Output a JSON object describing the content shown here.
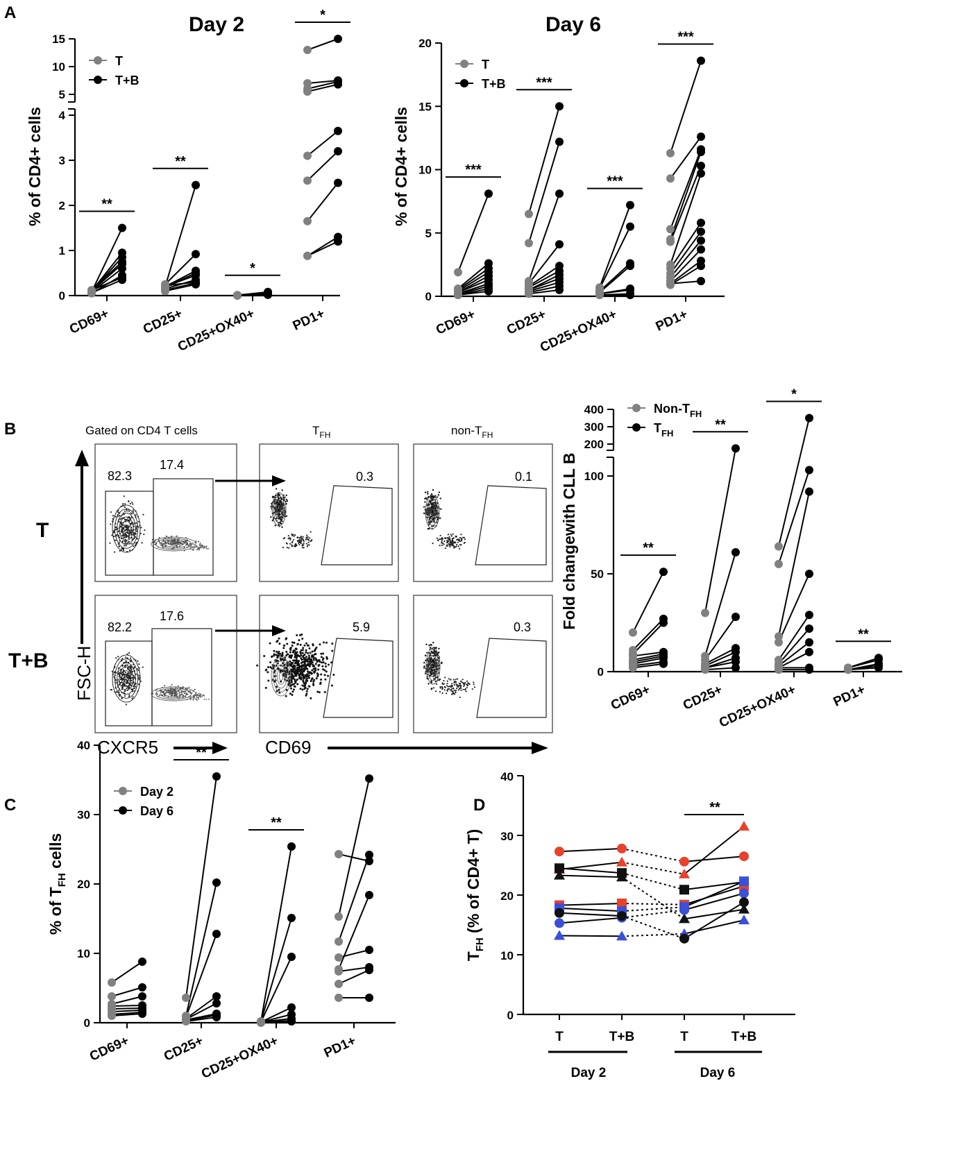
{
  "panel_labels": [
    "A",
    "B",
    "C",
    "D"
  ],
  "chart_data": [
    {
      "panel": "A",
      "type": "scatter",
      "title": "Day 2",
      "ylabel": "% of CD4+ cells",
      "categories": [
        "CD69+",
        "CD25+",
        "CD25+OX40+",
        "PD1+"
      ],
      "axis_break": {
        "lower": [
          0,
          4
        ],
        "upper": [
          4,
          15
        ]
      },
      "yticks_lower": [
        0,
        1,
        2,
        3,
        4
      ],
      "yticks_upper": [
        5,
        10,
        15
      ],
      "legend": [
        "T",
        "T+B"
      ],
      "significance": [
        "**",
        "**",
        "*",
        "*"
      ],
      "pairs": [
        [
          [
            0.08,
            1.5
          ],
          [
            0.1,
            0.95
          ],
          [
            0.1,
            0.85
          ],
          [
            0.12,
            0.75
          ],
          [
            0.1,
            0.7
          ],
          [
            0.08,
            0.6
          ],
          [
            0.05,
            0.45
          ],
          [
            0.12,
            0.4
          ],
          [
            0.06,
            0.35
          ]
        ],
        [
          [
            0.2,
            2.45
          ],
          [
            0.25,
            0.92
          ],
          [
            0.2,
            0.55
          ],
          [
            0.18,
            0.5
          ],
          [
            0.2,
            0.45
          ],
          [
            0.15,
            0.35
          ],
          [
            0.1,
            0.25
          ],
          [
            0.22,
            0.3
          ],
          [
            0.12,
            0.28
          ]
        ],
        [
          [
            0.01,
            0.08
          ],
          [
            0.01,
            0.05
          ],
          [
            0.01,
            0.04
          ],
          [
            0.0,
            0.03
          ],
          [
            0.01,
            0.02
          ],
          [
            0.0,
            0.02
          ]
        ],
        [
          [
            13,
            15
          ],
          [
            7,
            7.5
          ],
          [
            6,
            7.3
          ],
          [
            5.5,
            6.8
          ],
          [
            3.1,
            3.65
          ],
          [
            2.55,
            3.2
          ],
          [
            1.65,
            2.5
          ],
          [
            0.88,
            1.3
          ],
          [
            0.88,
            1.2
          ]
        ]
      ]
    },
    {
      "panel": "A",
      "type": "scatter",
      "title": "Day 6",
      "ylabel": "% of CD4+ cells",
      "categories": [
        "CD69+",
        "CD25+",
        "CD25+OX40+",
        "PD1+"
      ],
      "ylim": [
        0,
        20
      ],
      "yticks": [
        0,
        5,
        10,
        15,
        20
      ],
      "legend": [
        "T",
        "T+B"
      ],
      "significance": [
        "***",
        "***",
        "***",
        "***"
      ],
      "pairs": [
        [
          [
            1.9,
            8.1
          ],
          [
            0.6,
            2.6
          ],
          [
            0.5,
            2.2
          ],
          [
            0.4,
            1.9
          ],
          [
            0.3,
            1.6
          ],
          [
            0.3,
            1.3
          ],
          [
            0.2,
            1.0
          ],
          [
            0.15,
            0.8
          ],
          [
            0.1,
            0.6
          ],
          [
            0.1,
            0.4
          ]
        ],
        [
          [
            6.5,
            15.0
          ],
          [
            4.2,
            12.2
          ],
          [
            1.2,
            8.1
          ],
          [
            1.0,
            4.1
          ],
          [
            0.8,
            2.4
          ],
          [
            0.7,
            2.0
          ],
          [
            0.5,
            1.7
          ],
          [
            0.5,
            1.4
          ],
          [
            0.4,
            1.1
          ],
          [
            0.3,
            0.8
          ],
          [
            0.2,
            0.5
          ]
        ],
        [
          [
            0.7,
            7.2
          ],
          [
            0.6,
            5.5
          ],
          [
            0.4,
            2.6
          ],
          [
            0.3,
            2.4
          ],
          [
            0.2,
            0.6
          ],
          [
            0.2,
            0.5
          ],
          [
            0.1,
            0.2
          ],
          [
            0.1,
            0.1
          ]
        ],
        [
          [
            11.3,
            18.6
          ],
          [
            9.3,
            12.6
          ],
          [
            5.3,
            11.6
          ],
          [
            4.5,
            11.4
          ],
          [
            4.3,
            10.3
          ],
          [
            2.5,
            9.7
          ],
          [
            2.2,
            5.8
          ],
          [
            1.8,
            5.1
          ],
          [
            1.5,
            4.4
          ],
          [
            1.2,
            3.7
          ],
          [
            1.0,
            2.8
          ],
          [
            0.9,
            2.4
          ],
          [
            1.0,
            1.2
          ]
        ]
      ]
    },
    {
      "panel": "B",
      "type": "scatter",
      "ylabel": "Fold changewith CLL B",
      "categories": [
        "CD69+",
        "CD25+",
        "CD25+OX40+",
        "PD1+"
      ],
      "axis_break": {
        "lower": [
          0,
          105
        ],
        "upper": [
          150,
          400
        ]
      },
      "yticks_lower": [
        0,
        50,
        100
      ],
      "yticks_upper": [
        200,
        300,
        400
      ],
      "legend": [
        {
          "main": "Non-T",
          "sub": "FH"
        },
        {
          "main": "T",
          "sub": "FH"
        }
      ],
      "significance": [
        "**",
        "**",
        "*",
        "**"
      ],
      "pairs": [
        [
          [
            20,
            51
          ],
          [
            11,
            27
          ],
          [
            9,
            25
          ],
          [
            8,
            10
          ],
          [
            6,
            9
          ],
          [
            5,
            8
          ],
          [
            4,
            7
          ],
          [
            3,
            5
          ],
          [
            2,
            4
          ]
        ],
        [
          [
            30,
            175
          ],
          [
            8,
            61
          ],
          [
            6,
            28
          ],
          [
            4,
            12
          ],
          [
            3,
            10
          ],
          [
            2,
            7
          ],
          [
            2,
            5
          ],
          [
            1,
            2
          ]
        ],
        [
          [
            64,
            350
          ],
          [
            55,
            103
          ],
          [
            18,
            92
          ],
          [
            15,
            50
          ],
          [
            6,
            29
          ],
          [
            4,
            22
          ],
          [
            3,
            15
          ],
          [
            2,
            10
          ],
          [
            2,
            2
          ],
          [
            1,
            1
          ]
        ],
        [
          [
            2,
            7
          ],
          [
            2,
            6
          ],
          [
            1,
            4
          ],
          [
            1,
            3
          ],
          [
            1,
            2
          ]
        ]
      ]
    },
    {
      "panel": "C",
      "type": "scatter",
      "ylabel": "% of T",
      "ylabel_sub": "FH",
      "ylabel_suffix": " cells",
      "categories": [
        "CD69+",
        "CD25+",
        "CD25+OX40+",
        "PD1+"
      ],
      "ylim": [
        0,
        40
      ],
      "yticks": [
        0,
        10,
        20,
        30,
        40
      ],
      "legend": [
        "Day 2",
        "Day 6"
      ],
      "significance": [
        "",
        "**",
        "**",
        ""
      ],
      "pairs": [
        [
          [
            5.8,
            8.8
          ],
          [
            3.8,
            5.1
          ],
          [
            2.7,
            3.8
          ],
          [
            2.4,
            2.5
          ],
          [
            2.0,
            2.1
          ],
          [
            1.6,
            1.8
          ],
          [
            1.2,
            1.5
          ],
          [
            1.0,
            1.3
          ]
        ],
        [
          [
            3.6,
            35.5
          ],
          [
            1.0,
            20.2
          ],
          [
            0.8,
            12.8
          ],
          [
            0.6,
            3.8
          ],
          [
            0.5,
            2.8
          ],
          [
            0.4,
            1.3
          ],
          [
            0.3,
            1.1
          ],
          [
            0.2,
            0.8
          ]
        ],
        [
          [
            0.2,
            25.4
          ],
          [
            0.2,
            15.1
          ],
          [
            0.1,
            9.5
          ],
          [
            0.1,
            2.2
          ],
          [
            0.1,
            1.2
          ],
          [
            0.1,
            0.6
          ],
          [
            0.1,
            0.3
          ],
          [
            0.0,
            0.2
          ]
        ],
        [
          [
            24.3,
            23.3
          ],
          [
            15.3,
            35.2
          ],
          [
            11.7,
            24.2
          ],
          [
            9.4,
            10.5
          ],
          [
            7.7,
            18.4
          ],
          [
            7.4,
            8.0
          ],
          [
            5.6,
            7.6
          ],
          [
            3.6,
            3.6
          ]
        ]
      ]
    },
    {
      "panel": "D",
      "type": "line",
      "ylabel": "T",
      "ylabel_sub": "FH",
      "ylabel_suffix": " (% of CD4+ T)",
      "categories": [
        "T",
        "T+B",
        "T",
        "T+B"
      ],
      "groups": [
        "Day 2",
        "Day 6"
      ],
      "ylim": [
        0,
        40
      ],
      "yticks": [
        0,
        10,
        20,
        30,
        40
      ],
      "significance": "**",
      "colors": {
        "red": "#e8412c",
        "blue": "#3b4fd9",
        "black": "#111111"
      },
      "series": [
        {
          "color": "red",
          "marker": "circle",
          "values": [
            27.3,
            27.8,
            25.6,
            26.5
          ]
        },
        {
          "color": "red",
          "marker": "triangle",
          "values": [
            24.3,
            25.5,
            23.5,
            31.5
          ]
        },
        {
          "color": "black",
          "marker": "square",
          "values": [
            24.5,
            23.7,
            20.9,
            22.2
          ]
        },
        {
          "color": "black",
          "marker": "triangle",
          "values": [
            23.3,
            23.0,
            16.0,
            17.6
          ]
        },
        {
          "color": "red",
          "marker": "square",
          "values": [
            18.3,
            18.6,
            18.4,
            21.5
          ]
        },
        {
          "color": "blue",
          "marker": "square",
          "values": [
            17.8,
            17.3,
            18.0,
            22.3
          ]
        },
        {
          "color": "blue",
          "marker": "circle",
          "values": [
            15.3,
            16.2,
            17.5,
            20.3
          ]
        },
        {
          "color": "blue",
          "marker": "triangle",
          "values": [
            13.2,
            13.1,
            13.5,
            15.8
          ]
        },
        {
          "color": "black",
          "marker": "circle",
          "values": [
            17.0,
            16.5,
            12.7,
            18.8
          ]
        }
      ]
    }
  ],
  "flow_cytometry": {
    "column_headers": {
      "gated": "Gated on CD4 T cells",
      "tfh_main": "T",
      "tfh_sub": "FH",
      "nontfh_main": "non-T",
      "nontfh_sub": "FH"
    },
    "conditions": [
      "T",
      "T+B"
    ],
    "rows": [
      {
        "left": "82.3",
        "right": "17.4",
        "tfh": "0.3",
        "nontfh": "0.1"
      },
      {
        "left": "82.2",
        "right": "17.6",
        "tfh": "5.9",
        "nontfh": "0.3"
      }
    ],
    "y_axis": "FSC-H",
    "x_axis_1": "CXCR5",
    "x_axis_2": "CD69"
  }
}
